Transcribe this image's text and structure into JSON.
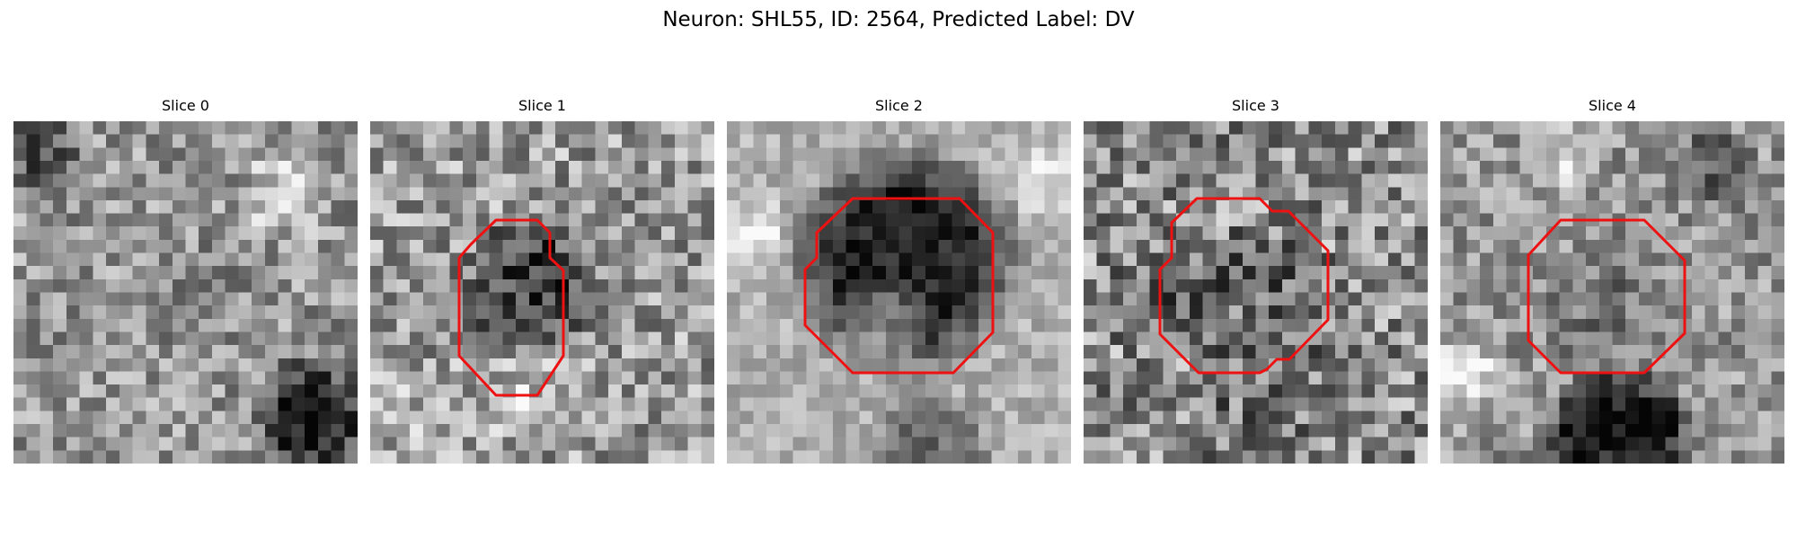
{
  "figure": {
    "title": "Neuron: SHL55, ID: 2564, Predicted Label: DV",
    "grid_size": 26,
    "colormap": "gray",
    "contour_color": "#ee1111"
  },
  "slices": [
    {
      "title": "Slice 0",
      "has_outline": false
    },
    {
      "title": "Slice 1",
      "has_outline": true
    },
    {
      "title": "Slice 2",
      "has_outline": true
    },
    {
      "title": "Slice 3",
      "has_outline": true
    },
    {
      "title": "Slice 4",
      "has_outline": true
    }
  ]
}
